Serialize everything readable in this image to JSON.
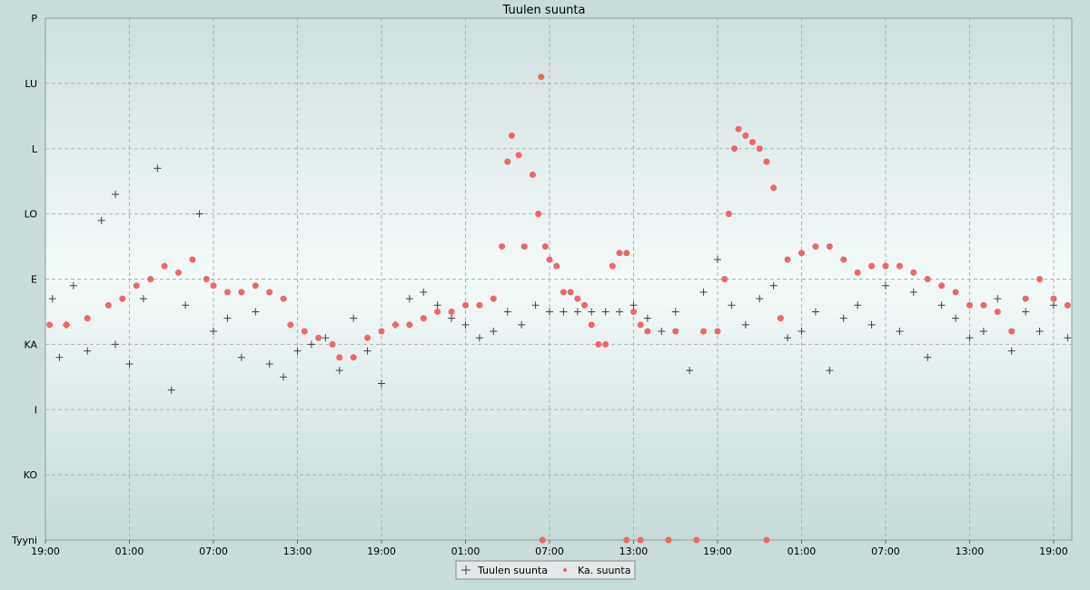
{
  "chart_data": {
    "type": "scatter",
    "title": "Tuulen suunta",
    "xlabel": "",
    "ylabel": "",
    "x_tick_labels": [
      "19:00",
      "01:00",
      "07:00",
      "13:00",
      "19:00",
      "01:00",
      "07:00",
      "13:00",
      "19:00",
      "01:00",
      "07:00",
      "13:00",
      "19:00"
    ],
    "y_tick_labels": [
      "Tyyni",
      "KO",
      "I",
      "KA",
      "E",
      "LO",
      "L",
      "LU",
      "P"
    ],
    "x_range_hours": [
      0,
      73.3
    ],
    "y_range": [
      0,
      8
    ],
    "grid": true,
    "legend_position": "bottom-center",
    "series": [
      {
        "name": "Tuulen suunta",
        "marker": "plus",
        "color": "#404040",
        "points": [
          [
            0.5,
            3.7
          ],
          [
            1.0,
            2.8
          ],
          [
            1.5,
            3.3
          ],
          [
            2.0,
            3.9
          ],
          [
            3.0,
            2.9
          ],
          [
            4.0,
            4.9
          ],
          [
            5.0,
            3.0
          ],
          [
            5.0,
            5.3
          ],
          [
            6.0,
            2.7
          ],
          [
            7.0,
            3.7
          ],
          [
            8.0,
            5.7
          ],
          [
            9.0,
            2.3
          ],
          [
            10.0,
            3.6
          ],
          [
            11.0,
            5.0
          ],
          [
            12.0,
            3.2
          ],
          [
            13.0,
            3.4
          ],
          [
            14.0,
            2.8
          ],
          [
            15.0,
            3.5
          ],
          [
            16.0,
            2.7
          ],
          [
            17.0,
            2.5
          ],
          [
            18.0,
            2.9
          ],
          [
            19.0,
            3.0
          ],
          [
            20.0,
            3.1
          ],
          [
            21.0,
            2.6
          ],
          [
            22.0,
            3.4
          ],
          [
            23.0,
            2.9
          ],
          [
            24.0,
            2.4
          ],
          [
            25.0,
            3.3
          ],
          [
            26.0,
            3.7
          ],
          [
            27.0,
            3.8
          ],
          [
            28.0,
            3.6
          ],
          [
            29.0,
            3.4
          ],
          [
            30.0,
            3.3
          ],
          [
            31.0,
            3.1
          ],
          [
            32.0,
            3.2
          ],
          [
            33.0,
            3.5
          ],
          [
            34.0,
            3.3
          ],
          [
            35.0,
            3.6
          ],
          [
            36.0,
            3.5
          ],
          [
            37.0,
            3.5
          ],
          [
            38.0,
            3.5
          ],
          [
            39.0,
            3.5
          ],
          [
            40.0,
            3.5
          ],
          [
            41.0,
            3.5
          ],
          [
            42.0,
            3.6
          ],
          [
            43.0,
            3.4
          ],
          [
            44.0,
            3.2
          ],
          [
            45.0,
            3.5
          ],
          [
            46.0,
            2.6
          ],
          [
            47.0,
            3.8
          ],
          [
            48.0,
            4.3
          ],
          [
            49.0,
            3.6
          ],
          [
            50.0,
            3.3
          ],
          [
            51.0,
            3.7
          ],
          [
            52.0,
            3.9
          ],
          [
            53.0,
            3.1
          ],
          [
            54.0,
            3.2
          ],
          [
            55.0,
            3.5
          ],
          [
            56.0,
            2.6
          ],
          [
            57.0,
            3.4
          ],
          [
            58.0,
            3.6
          ],
          [
            59.0,
            3.3
          ],
          [
            60.0,
            3.9
          ],
          [
            61.0,
            3.2
          ],
          [
            62.0,
            3.8
          ],
          [
            63.0,
            2.8
          ],
          [
            64.0,
            3.6
          ],
          [
            65.0,
            3.4
          ],
          [
            66.0,
            3.1
          ],
          [
            67.0,
            3.2
          ],
          [
            68.0,
            3.7
          ],
          [
            69.0,
            2.9
          ],
          [
            70.0,
            3.5
          ],
          [
            71.0,
            3.2
          ],
          [
            72.0,
            3.6
          ],
          [
            73.0,
            3.1
          ]
        ]
      },
      {
        "name": "Ka. suunta",
        "marker": "dot",
        "color": "#f06565",
        "points": [
          [
            0.3,
            3.3
          ],
          [
            1.5,
            3.3
          ],
          [
            3.0,
            3.4
          ],
          [
            4.5,
            3.6
          ],
          [
            5.5,
            3.7
          ],
          [
            6.5,
            3.9
          ],
          [
            7.5,
            4.0
          ],
          [
            8.5,
            4.2
          ],
          [
            9.5,
            4.1
          ],
          [
            10.5,
            4.3
          ],
          [
            11.5,
            4.0
          ],
          [
            12.0,
            3.9
          ],
          [
            13.0,
            3.8
          ],
          [
            14.0,
            3.8
          ],
          [
            15.0,
            3.9
          ],
          [
            16.0,
            3.8
          ],
          [
            17.0,
            3.7
          ],
          [
            17.5,
            3.3
          ],
          [
            18.5,
            3.2
          ],
          [
            19.5,
            3.1
          ],
          [
            20.5,
            3.0
          ],
          [
            21.0,
            2.8
          ],
          [
            22.0,
            2.8
          ],
          [
            23.0,
            3.1
          ],
          [
            24.0,
            3.2
          ],
          [
            25.0,
            3.3
          ],
          [
            26.0,
            3.3
          ],
          [
            27.0,
            3.4
          ],
          [
            28.0,
            3.5
          ],
          [
            29.0,
            3.5
          ],
          [
            30.0,
            3.6
          ],
          [
            31.0,
            3.6
          ],
          [
            32.0,
            3.7
          ],
          [
            32.6,
            4.5
          ],
          [
            33.0,
            5.8
          ],
          [
            33.3,
            6.2
          ],
          [
            33.8,
            5.9
          ],
          [
            34.2,
            4.5
          ],
          [
            34.8,
            5.6
          ],
          [
            35.2,
            5.0
          ],
          [
            35.4,
            7.1
          ],
          [
            35.7,
            4.5
          ],
          [
            36.0,
            4.3
          ],
          [
            36.5,
            4.2
          ],
          [
            37.0,
            3.8
          ],
          [
            37.5,
            3.8
          ],
          [
            38.0,
            3.7
          ],
          [
            38.5,
            3.6
          ],
          [
            39.0,
            3.3
          ],
          [
            39.5,
            3.0
          ],
          [
            40.0,
            3.0
          ],
          [
            40.5,
            4.2
          ],
          [
            41.0,
            4.4
          ],
          [
            41.5,
            4.4
          ],
          [
            42.0,
            3.5
          ],
          [
            42.5,
            3.3
          ],
          [
            43.0,
            3.2
          ],
          [
            45.0,
            3.2
          ],
          [
            47.0,
            3.2
          ],
          [
            48.0,
            3.2
          ],
          [
            48.5,
            4.0
          ],
          [
            48.8,
            5.0
          ],
          [
            49.2,
            6.0
          ],
          [
            49.5,
            6.3
          ],
          [
            50.0,
            6.2
          ],
          [
            50.5,
            6.1
          ],
          [
            51.0,
            6.0
          ],
          [
            51.5,
            5.8
          ],
          [
            52.0,
            5.4
          ],
          [
            52.5,
            3.4
          ],
          [
            53.0,
            4.3
          ],
          [
            54.0,
            4.4
          ],
          [
            55.0,
            4.5
          ],
          [
            56.0,
            4.5
          ],
          [
            57.0,
            4.3
          ],
          [
            58.0,
            4.1
          ],
          [
            59.0,
            4.2
          ],
          [
            60.0,
            4.2
          ],
          [
            61.0,
            4.2
          ],
          [
            62.0,
            4.1
          ],
          [
            63.0,
            4.0
          ],
          [
            64.0,
            3.9
          ],
          [
            65.0,
            3.8
          ],
          [
            66.0,
            3.6
          ],
          [
            67.0,
            3.6
          ],
          [
            68.0,
            3.5
          ],
          [
            69.0,
            3.2
          ],
          [
            70.0,
            3.7
          ],
          [
            71.0,
            4.0
          ],
          [
            72.0,
            3.7
          ],
          [
            73.0,
            3.6
          ],
          [
            35.5,
            0.0
          ],
          [
            41.5,
            0.0
          ],
          [
            42.5,
            0.0
          ],
          [
            44.5,
            0.0
          ],
          [
            46.5,
            0.0
          ],
          [
            51.5,
            0.0
          ]
        ]
      }
    ]
  }
}
